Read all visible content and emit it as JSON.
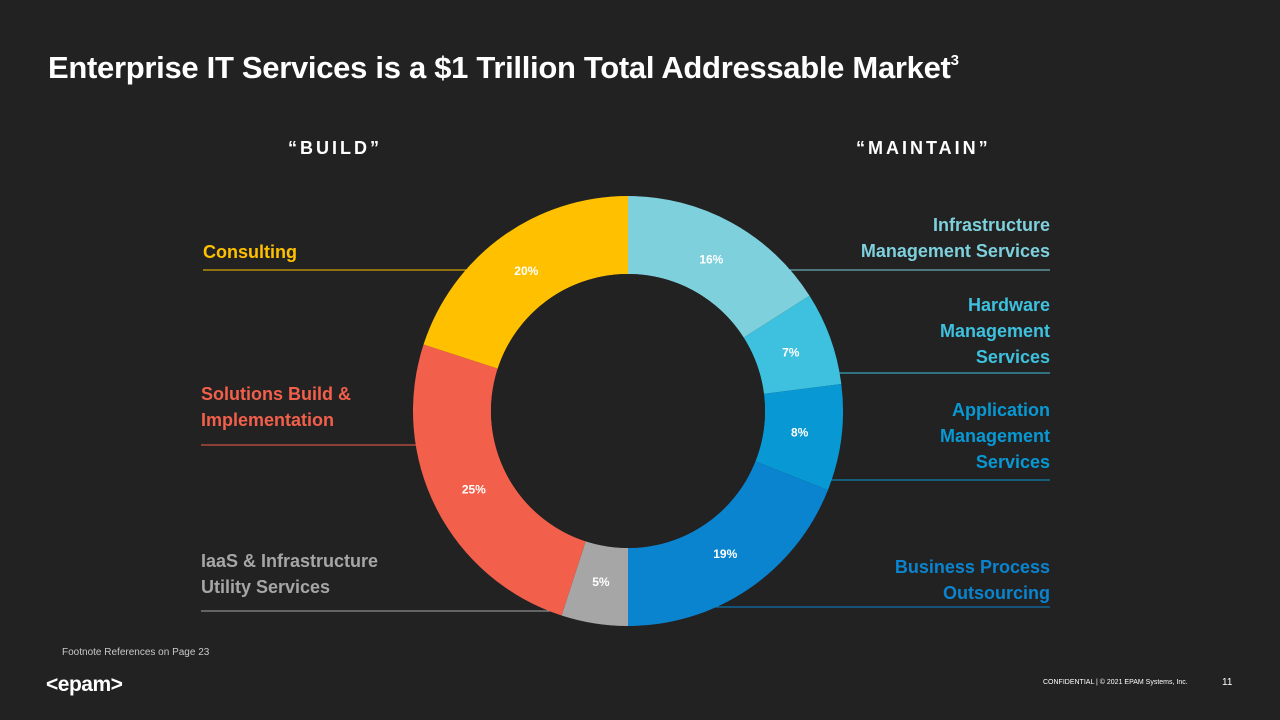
{
  "title": {
    "text": "Enterprise IT Services is a $1 Trillion Total Addressable Market",
    "superscript": "3"
  },
  "groups": {
    "build": "“BUILD”",
    "maintain": "“MAINTAIN”"
  },
  "labels": {
    "consulting": [
      "Consulting"
    ],
    "solutions": [
      "Solutions Build &",
      "Implementation"
    ],
    "iaas": [
      "IaaS & Infrastructure",
      "Utility Services"
    ],
    "infrastructure_mgmt": [
      "Infrastructure",
      "Management Services"
    ],
    "hardware_mgmt": [
      "Hardware",
      "Management",
      "Services"
    ],
    "application_mgmt": [
      "Application",
      "Management",
      "Services"
    ],
    "bpo": [
      "Business Process",
      "Outsourcing"
    ]
  },
  "chart_data": {
    "type": "pie",
    "variant": "donut",
    "title": "Enterprise IT Services is a $1 Trillion Total Addressable Market",
    "slices": [
      {
        "label": "Infrastructure Management Services",
        "value": 16,
        "display": "16%",
        "color": "#7dd0dc"
      },
      {
        "label": "Hardware Management Services",
        "value": 7,
        "display": "7%",
        "color": "#3ec1de"
      },
      {
        "label": "Application Management Services",
        "value": 8,
        "display": "8%",
        "color": "#0898d3"
      },
      {
        "label": "Business Process Outsourcing",
        "value": 19,
        "display": "19%",
        "color": "#0a84cf"
      },
      {
        "label": "IaaS & Infrastructure Utility Services",
        "value": 5,
        "display": "5%",
        "color": "#a6a6a6"
      },
      {
        "label": "Solutions Build & Implementation",
        "value": 25,
        "display": "25%",
        "color": "#f25f4a"
      },
      {
        "label": "Consulting",
        "value": 20,
        "display": "20%",
        "color": "#ffc000"
      }
    ],
    "legend": "none"
  },
  "colors": {
    "background": "#222222",
    "consulting": "#ffc000",
    "solutions": "#f25f4a",
    "iaas": "#a6a6a6",
    "infrastructure": "#7dd0dc",
    "hardware": "#3ec1de",
    "application": "#0898d3",
    "bpo": "#0a84cf"
  },
  "footer": {
    "footnote": "Footnote References on Page 23",
    "logo": "<epam>",
    "confidential": "CONFIDENTIAL  |  © 2021 EPAM Systems, Inc.",
    "page_number": "11"
  }
}
